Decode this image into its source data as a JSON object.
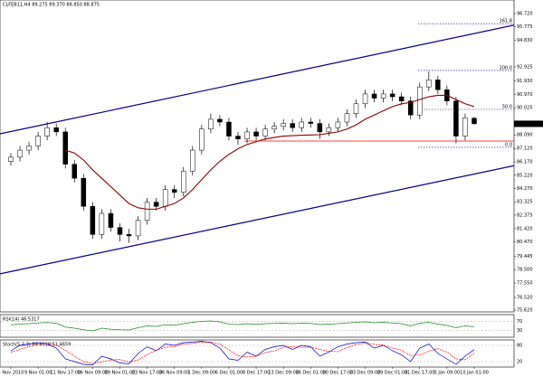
{
  "chart_data": [
    {
      "type": "candlestick",
      "title": "CLFEB11,H4 89.275 89.370 88.850 88.875",
      "categories": [
        "4 Nov 2010",
        null,
        null,
        "9 Nov 01:00",
        null,
        null,
        "11 Nov 17:00",
        null,
        null,
        "16 Nov 09:00",
        null,
        null,
        "19 Nov 01:00",
        null,
        null,
        "23 Nov 17:00",
        null,
        null,
        "26 Nov 09:00",
        null,
        null,
        "1 Dec 09:00",
        null,
        null,
        "6 Dec 01:00",
        null,
        null,
        "8 Dec 17:00",
        null,
        null,
        "13 Dec 09:00",
        null,
        null,
        "16 Dec 01:00",
        null,
        null,
        "20 Dec 17:00",
        null,
        null,
        "23 Dec 09:00",
        null,
        null,
        "29 Dec 01:00",
        null,
        null,
        "31 Dec 17:00",
        null,
        null,
        "5 Jan 09:00",
        null,
        null,
        "10 Jan 01:00"
      ],
      "open": [
        86.2,
        86.5,
        87.0,
        87.3,
        88.0,
        88.6,
        88.3,
        86.0,
        85.0,
        83.0,
        81.0,
        82.5,
        81.5,
        81.0,
        80.9,
        82.0,
        83.3,
        83.0,
        84.2,
        84.0,
        85.5,
        87.0,
        88.5,
        89.2,
        89.0,
        88.0,
        87.8,
        88.3,
        88.0,
        88.5,
        88.7,
        88.9,
        88.6,
        89.0,
        88.9,
        88.3,
        88.6,
        89.0,
        89.6,
        90.3,
        91.0,
        90.7,
        91.0,
        90.8,
        90.5,
        89.5,
        91.5,
        92.0,
        91.3,
        90.5,
        88.0,
        89.275
      ],
      "high": [
        86.8,
        87.3,
        87.6,
        88.3,
        89.0,
        88.9,
        88.6,
        86.3,
        85.3,
        83.3,
        82.8,
        82.8,
        81.8,
        81.4,
        82.3,
        83.6,
        83.6,
        84.5,
        84.5,
        85.8,
        87.3,
        88.8,
        89.6,
        89.5,
        89.3,
        88.3,
        88.6,
        88.6,
        88.8,
        89.0,
        89.2,
        89.2,
        89.3,
        89.3,
        89.2,
        88.9,
        89.3,
        89.9,
        90.6,
        91.3,
        91.3,
        91.3,
        91.3,
        91.1,
        90.8,
        91.8,
        92.6,
        92.3,
        91.6,
        90.8,
        89.6,
        89.37
      ],
      "low": [
        85.9,
        86.2,
        86.7,
        87.0,
        87.7,
        88.0,
        85.7,
        84.7,
        82.7,
        80.7,
        80.7,
        81.2,
        80.5,
        80.4,
        80.6,
        81.7,
        82.7,
        82.7,
        83.6,
        83.7,
        85.2,
        86.7,
        88.2,
        88.7,
        87.7,
        87.4,
        87.5,
        87.7,
        87.7,
        88.2,
        88.4,
        88.3,
        88.3,
        88.6,
        87.8,
        88.0,
        88.3,
        88.7,
        89.3,
        90.0,
        90.4,
        90.4,
        90.5,
        90.2,
        89.2,
        89.2,
        91.2,
        91.0,
        90.2,
        87.5,
        87.7,
        88.85
      ],
      "close": [
        86.5,
        87.0,
        87.3,
        88.0,
        88.6,
        88.3,
        86.0,
        85.0,
        83.0,
        81.0,
        82.5,
        81.5,
        81.0,
        80.9,
        82.0,
        83.3,
        83.0,
        84.2,
        84.0,
        85.5,
        87.0,
        88.5,
        89.2,
        89.0,
        88.0,
        87.8,
        88.3,
        88.0,
        88.5,
        88.7,
        88.9,
        88.6,
        89.0,
        88.9,
        88.3,
        88.6,
        89.0,
        89.6,
        90.3,
        91.0,
        90.7,
        91.0,
        90.8,
        90.5,
        89.5,
        91.5,
        92.0,
        91.3,
        90.5,
        88.0,
        89.3,
        88.875
      ],
      "moving_average": {
        "color": "#8b0000",
        "values": [
          null,
          null,
          null,
          null,
          null,
          null,
          87.0,
          86.8,
          86.3,
          85.6,
          85.0,
          84.4,
          83.8,
          83.2,
          82.9,
          82.8,
          82.8,
          83.0,
          83.2,
          83.6,
          84.2,
          84.9,
          85.6,
          86.2,
          86.7,
          87.1,
          87.4,
          87.6,
          87.8,
          87.9,
          88.0,
          88.03,
          88.06,
          88.08,
          88.1,
          88.2,
          88.3,
          88.5,
          88.8,
          89.2,
          89.5,
          89.8,
          90.1,
          90.3,
          90.4,
          90.6,
          90.8,
          90.9,
          90.9,
          90.6,
          90.3,
          90.1
        ]
      },
      "ylim": [
        75.49,
        97.685
      ],
      "yticks": [
        {
          "value": 96.72,
          "label": "96.720"
        },
        {
          "value": 95.775,
          "label": "95.775"
        },
        {
          "value": 94.83,
          "label": "94.830"
        },
        {
          "value": 92.925,
          "label": "92.925"
        },
        {
          "value": 91.93,
          "label": "91.930"
        },
        {
          "value": 90.97,
          "label": "90.970"
        },
        {
          "value": 90.025,
          "label": "90.025"
        },
        {
          "value": 88.09,
          "label": "88.090"
        },
        {
          "value": 87.12,
          "label": "87.120"
        },
        {
          "value": 86.17,
          "label": "86.170"
        },
        {
          "value": 85.22,
          "label": "85.220"
        },
        {
          "value": 84.27,
          "label": "84.270"
        },
        {
          "value": 83.325,
          "label": "83.325"
        },
        {
          "value": 82.375,
          "label": "82.375"
        },
        {
          "value": 81.42,
          "label": "81.420"
        },
        {
          "value": 80.47,
          "label": "80.470"
        },
        {
          "value": 79.445,
          "label": "79.445"
        },
        {
          "value": 78.5,
          "label": "78.500"
        },
        {
          "value": 77.55,
          "label": "77.550"
        },
        {
          "value": 76.52,
          "label": "76.520"
        },
        {
          "value": 75.62,
          "label": "75.620"
        }
      ],
      "trendlines": [
        {
          "color": "#00008b",
          "start": [
            -1.2,
            88.16
          ],
          "end": [
            55.4,
            95.9
          ]
        },
        {
          "color": "#00008b",
          "start": [
            -1.2,
            78.2
          ],
          "end": [
            55.4,
            85.9
          ]
        }
      ],
      "fib_levels": [
        {
          "level": "161.8",
          "price": 96.0
        },
        {
          "level": "100.0",
          "price": 92.67
        },
        {
          "level": "50.0",
          "price": 89.9
        },
        {
          "level": "0.0",
          "price": 87.2
        }
      ],
      "fib_color": "#0000cd",
      "hlines": [
        {
          "price": 87.65,
          "color": "#ff0000"
        }
      ]
    },
    {
      "type": "line",
      "title": "RSI(14) 46.5317",
      "ylim": [
        0,
        100
      ],
      "yticks": [
        70,
        30
      ],
      "series": [
        {
          "color": "#228b22",
          "values": [
            55,
            58,
            60,
            63,
            65,
            62,
            45,
            40,
            33,
            28,
            40,
            35,
            33,
            32,
            42,
            50,
            48,
            55,
            53,
            60,
            66,
            70,
            72,
            68,
            58,
            56,
            60,
            57,
            60,
            61,
            62,
            60,
            62,
            61,
            56,
            58,
            60,
            63,
            66,
            68,
            64,
            66,
            63,
            60,
            50,
            62,
            66,
            58,
            52,
            42,
            50,
            46.5317
          ]
        }
      ]
    },
    {
      "type": "line",
      "title": "Stoch(5,3,3) 64.4018 51.4659",
      "ylim": [
        0,
        100
      ],
      "yticks": [
        80,
        20
      ],
      "series": [
        {
          "color": "#0000cd",
          "values": [
            60,
            80,
            85,
            90,
            85,
            70,
            30,
            20,
            10,
            8,
            40,
            30,
            15,
            12,
            50,
            75,
            60,
            85,
            80,
            90,
            92,
            95,
            90,
            70,
            30,
            25,
            55,
            40,
            65,
            75,
            80,
            65,
            80,
            75,
            40,
            55,
            75,
            85,
            90,
            92,
            70,
            80,
            60,
            45,
            20,
            70,
            85,
            50,
            30,
            10,
            40,
            64.4018
          ]
        },
        {
          "color": "#ff0000",
          "dashed": true,
          "values": [
            55,
            65,
            75,
            85,
            87,
            82,
            62,
            40,
            20,
            13,
            19,
            26,
            28,
            19,
            26,
            46,
            62,
            73,
            75,
            85,
            87,
            92,
            92,
            85,
            63,
            42,
            37,
            40,
            53,
            60,
            73,
            75,
            73,
            73,
            65,
            58,
            57,
            72,
            83,
            89,
            84,
            81,
            70,
            62,
            42,
            45,
            58,
            68,
            55,
            30,
            27,
            51.4659
          ]
        }
      ]
    }
  ]
}
